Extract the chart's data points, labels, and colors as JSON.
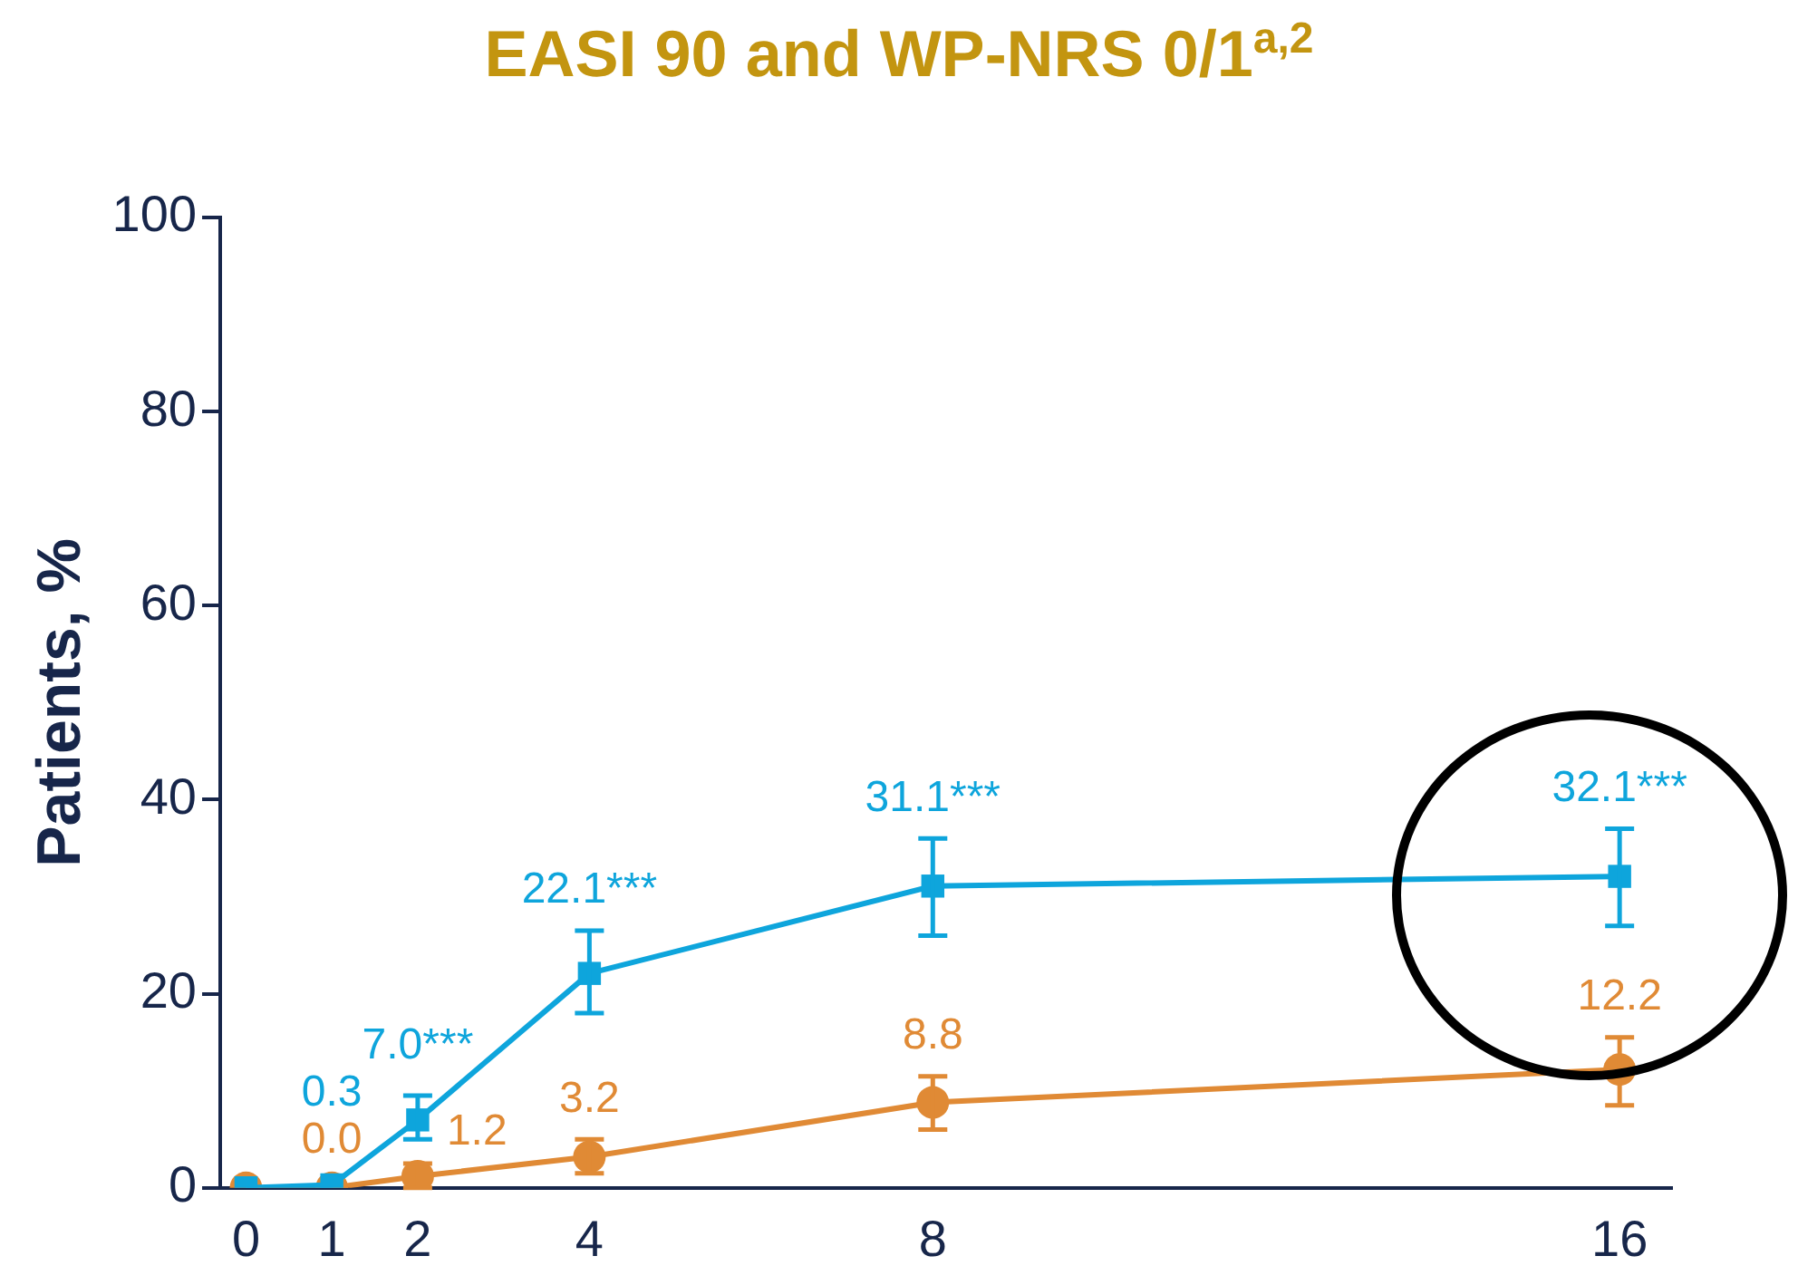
{
  "chart_data": {
    "type": "line",
    "title": "EASI 90 and WP-NRS 0/1$^{a,2}$",
    "ylabel": "Patients, %",
    "x": [
      0,
      1,
      2,
      4,
      8,
      16
    ],
    "xlim": [
      -0.3,
      16.6
    ],
    "xticks": [
      0,
      1,
      2,
      4,
      8,
      16
    ],
    "ylim": [
      0,
      100
    ],
    "yticks": [
      0,
      20,
      40,
      60,
      80,
      100
    ],
    "grid": false,
    "legend": false,
    "line_style": "solid",
    "series": [
      {
        "color": "#0ea5dc",
        "marker": "square",
        "values": [
          0,
          0.3,
          7.0,
          22.1,
          31.1,
          32.1
        ],
        "errors": [
          null,
          null,
          [
            5,
            9.5
          ],
          [
            18,
            26.5
          ],
          [
            26,
            36
          ],
          [
            27,
            37
          ]
        ],
        "value_labels": [
          null,
          "0.3",
          "7.0***",
          "22.1***",
          "31.1***",
          "32.1***"
        ]
      },
      {
        "color": "#e08a35",
        "marker": "circle",
        "values": [
          0,
          0.0,
          1.2,
          3.2,
          8.8,
          12.2
        ],
        "errors": [
          null,
          null,
          [
            0,
            2.5
          ],
          [
            1.5,
            5
          ],
          [
            6,
            11.5
          ],
          [
            8.5,
            15.5
          ]
        ],
        "value_labels": [
          null,
          "0.0",
          "1.2",
          "3.2",
          "8.8",
          "12.2"
        ]
      }
    ]
  }
}
